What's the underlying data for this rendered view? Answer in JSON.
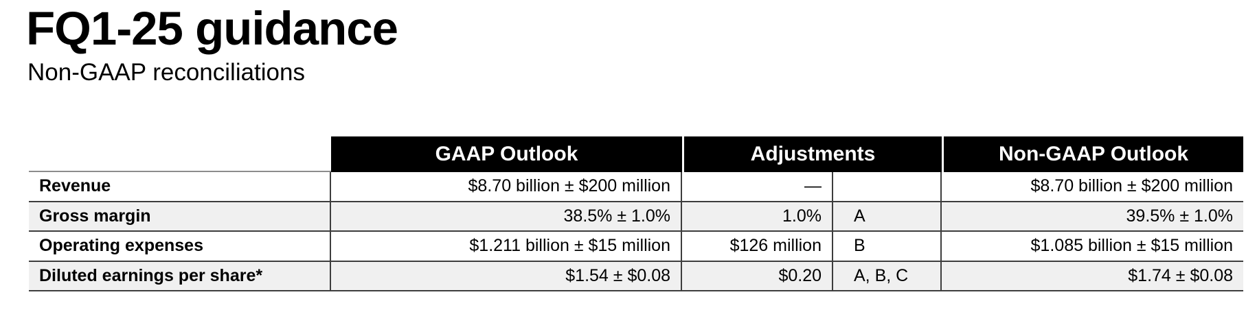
{
  "slide": {
    "title": "FQ1-25 guidance",
    "subtitle": "Non-GAAP reconciliations"
  },
  "table": {
    "headers": {
      "row_label": "",
      "gaap": "GAAP Outlook",
      "adjustments": "Adjustments",
      "non_gaap": "Non-GAAP Outlook"
    },
    "rows": [
      {
        "label": "Revenue",
        "gaap": "$8.70 billion ± $200 million",
        "adjustment": "—",
        "notes": "",
        "non_gaap": "$8.70 billion ± $200 million"
      },
      {
        "label": "Gross margin",
        "gaap": "38.5% ± 1.0%",
        "adjustment": "1.0%",
        "notes": "A",
        "non_gaap": "39.5% ± 1.0%"
      },
      {
        "label": "Operating expenses",
        "gaap": "$1.211 billion ± $15 million",
        "adjustment": "$126 million",
        "notes": "B",
        "non_gaap": "$1.085 billion ± $15 million"
      },
      {
        "label": "Diluted earnings per share*",
        "gaap": "$1.54 ± $0.08",
        "adjustment": "$0.20",
        "notes": "A, B, C",
        "non_gaap": "$1.74 ± $0.08"
      }
    ],
    "colors": {
      "header_bg": "#000000",
      "header_text": "#ffffff",
      "row_stripe": "#f0f0f0",
      "grid_line": "#3d3d3d",
      "label_top_line": "#8c8c8c"
    }
  }
}
